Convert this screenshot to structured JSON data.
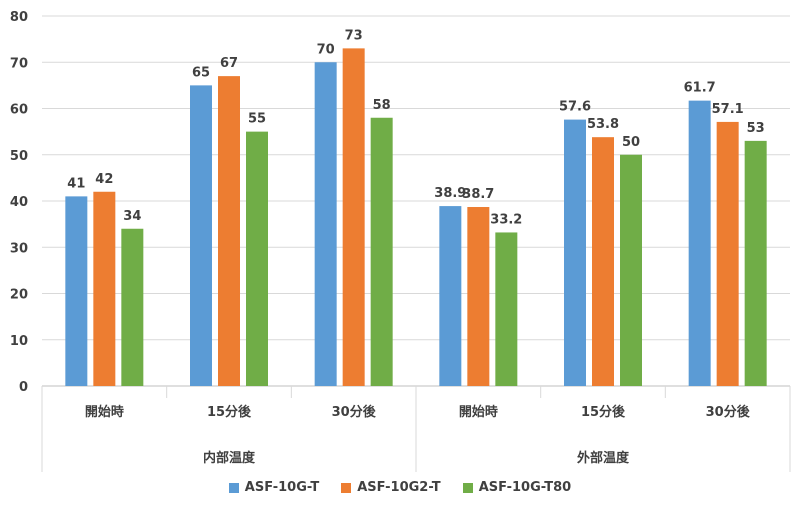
{
  "chart_data": {
    "type": "bar",
    "title": "",
    "xlabel": "",
    "ylabel": "",
    "ylim": [
      0,
      80
    ],
    "yticks": [
      "0",
      "10",
      "20",
      "30",
      "40",
      "50",
      "60",
      "70",
      "80"
    ],
    "groups": [
      {
        "label": "内部温度",
        "categories": [
          "開始時",
          "15分後",
          "30分後"
        ]
      },
      {
        "label": "外部温度",
        "categories": [
          "開始時",
          "15分後",
          "30分後"
        ]
      }
    ],
    "categories": [
      "開始時",
      "15分後",
      "30分後",
      "開始時",
      "15分後",
      "30分後"
    ],
    "series": [
      {
        "name": "ASF-10G-T",
        "color": "#5B9BD5",
        "values": [
          41,
          65,
          70,
          38.9,
          57.6,
          61.7
        ],
        "labels": [
          "41",
          "65",
          "70",
          "38.9",
          "57.6",
          "61.7"
        ]
      },
      {
        "name": "ASF-10G2-T",
        "color": "#ED7D31",
        "values": [
          42,
          67,
          73,
          38.7,
          53.8,
          57.1
        ],
        "labels": [
          "42",
          "67",
          "73",
          "38.7",
          "53.8",
          "57.1"
        ]
      },
      {
        "name": "ASF-10G-T80",
        "color": "#70AD47",
        "values": [
          34,
          55,
          58,
          33.2,
          50,
          53
        ],
        "labels": [
          "34",
          "55",
          "58",
          "33.2",
          "50",
          "53"
        ]
      }
    ],
    "legend_position": "bottom",
    "grid": true
  }
}
